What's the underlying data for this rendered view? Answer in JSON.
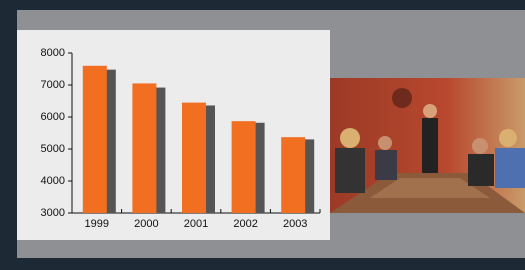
{
  "chart_data": {
    "type": "bar",
    "categories": [
      "1999",
      "2000",
      "2001",
      "2002",
      "2003"
    ],
    "series": [
      {
        "color": "#f26f22",
        "values": [
          7600,
          7050,
          6450,
          5870,
          5370
        ]
      },
      {
        "color": "#555555",
        "values": [
          7480,
          6920,
          6360,
          5820,
          5300
        ]
      }
    ],
    "ylim": [
      3000,
      8000
    ],
    "yticks": [
      3000,
      4000,
      5000,
      6000,
      7000,
      8000
    ]
  }
}
